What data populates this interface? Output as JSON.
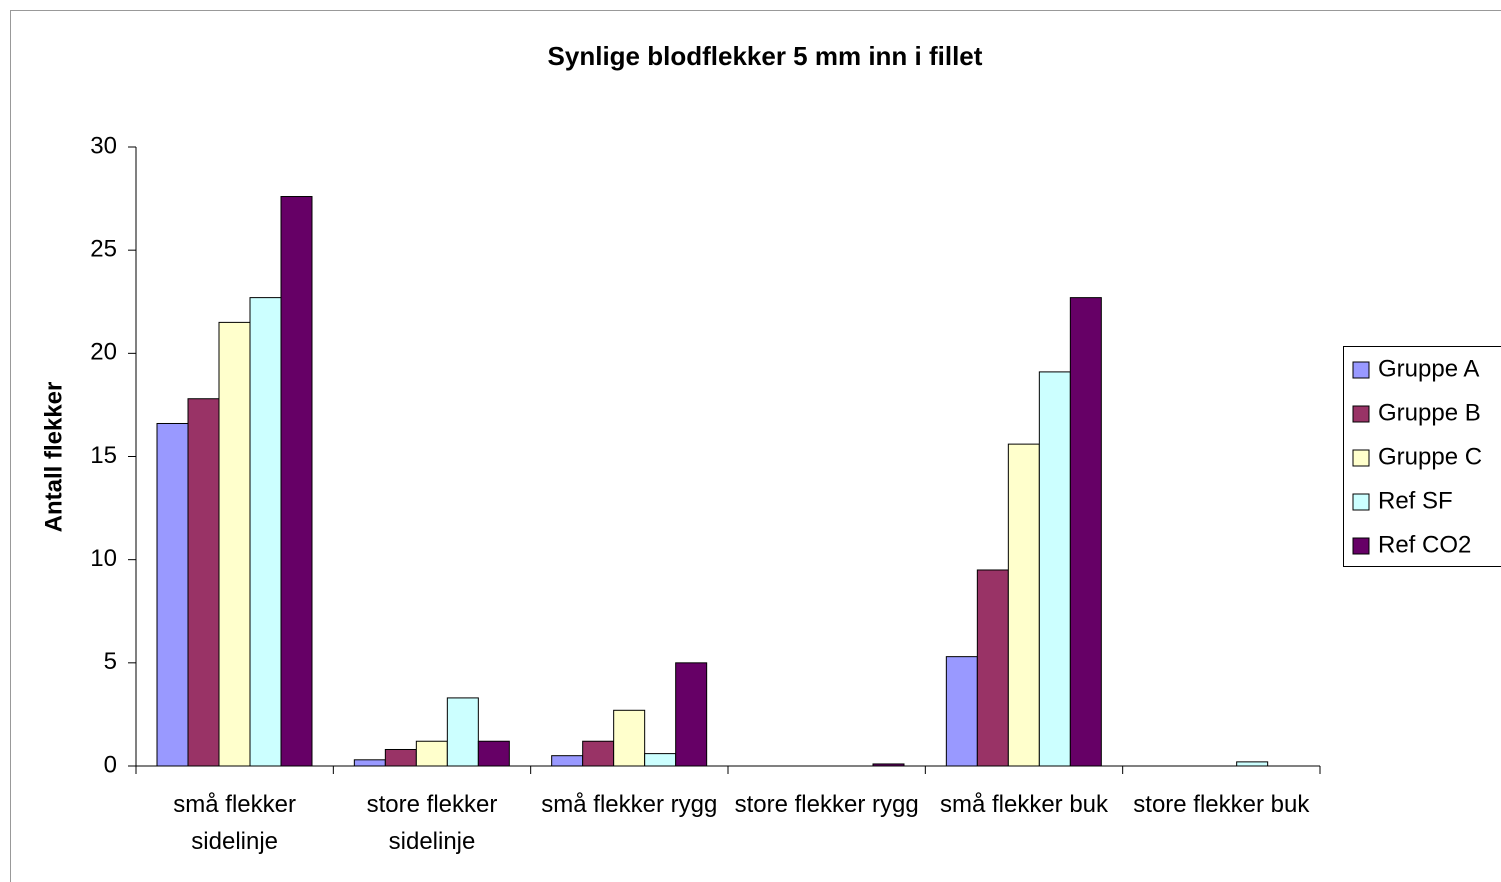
{
  "chart_data": {
    "type": "bar",
    "title": "Synlige blodflekker 5 mm inn i fillet",
    "ylabel": "Antall flekker",
    "categories": [
      "små flekker sidelinje",
      "store flekker sidelinje",
      "små flekker rygg",
      "store flekker rygg",
      "små flekker buk",
      "store flekker buk"
    ],
    "series": [
      {
        "name": "Gruppe A",
        "color": "#9999ff",
        "values": [
          16.6,
          0.3,
          0.5,
          0,
          5.3,
          0
        ]
      },
      {
        "name": "Gruppe B",
        "color": "#993366",
        "values": [
          17.8,
          0.8,
          1.2,
          0,
          9.5,
          0
        ]
      },
      {
        "name": "Gruppe C",
        "color": "#ffffcc",
        "values": [
          21.5,
          1.2,
          2.7,
          0,
          15.6,
          0
        ]
      },
      {
        "name": "Ref SF",
        "color": "#ccffff",
        "values": [
          22.7,
          3.3,
          0.6,
          0,
          19.1,
          0.2
        ]
      },
      {
        "name": "Ref CO2",
        "color": "#660066",
        "values": [
          27.6,
          1.2,
          5,
          0.1,
          22.7,
          0
        ]
      }
    ],
    "ylim": [
      0,
      30
    ],
    "yticks": [
      0,
      5,
      10,
      15,
      20,
      25,
      30
    ],
    "grid": false,
    "legend": "right"
  }
}
